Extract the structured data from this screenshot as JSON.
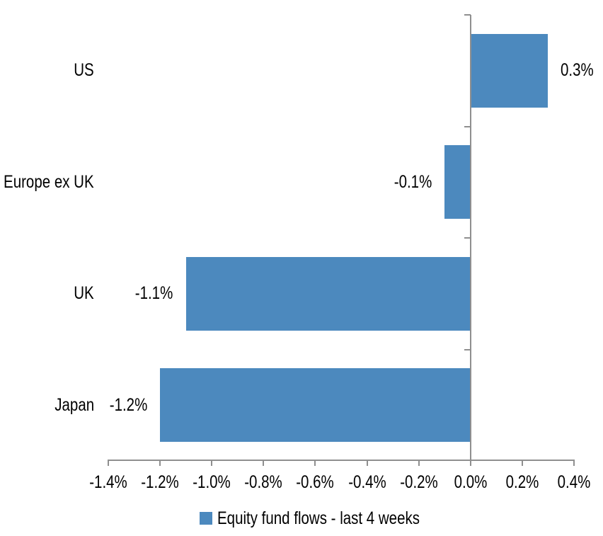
{
  "chart_data": {
    "type": "bar",
    "orientation": "horizontal",
    "title": "",
    "xlabel": "",
    "ylabel": "",
    "categories": [
      "US",
      "Europe ex UK",
      "UK",
      "Japan"
    ],
    "values": [
      0.3,
      -0.1,
      -1.1,
      -1.2
    ],
    "value_labels": [
      "0.3%",
      "-0.1%",
      "-1.1%",
      "-1.2%"
    ],
    "value_label_position": "outside-end",
    "xlim": [
      -1.4,
      0.4
    ],
    "x_tick_step": 0.2,
    "x_tick_labels": [
      "-1.4%",
      "-1.2%",
      "-1.0%",
      "-0.8%",
      "-0.6%",
      "-0.4%",
      "-0.2%",
      "0.0%",
      "0.2%",
      "0.4%"
    ],
    "grid": "off",
    "legend": {
      "label": "Equity fund flows - last 4 weeks",
      "position": "bottom-center",
      "swatch": "square"
    },
    "colors": {
      "bar": "#4C89BE",
      "axis": "#8F8F8F",
      "text": "#000000",
      "background": "#FFFFFF"
    }
  }
}
